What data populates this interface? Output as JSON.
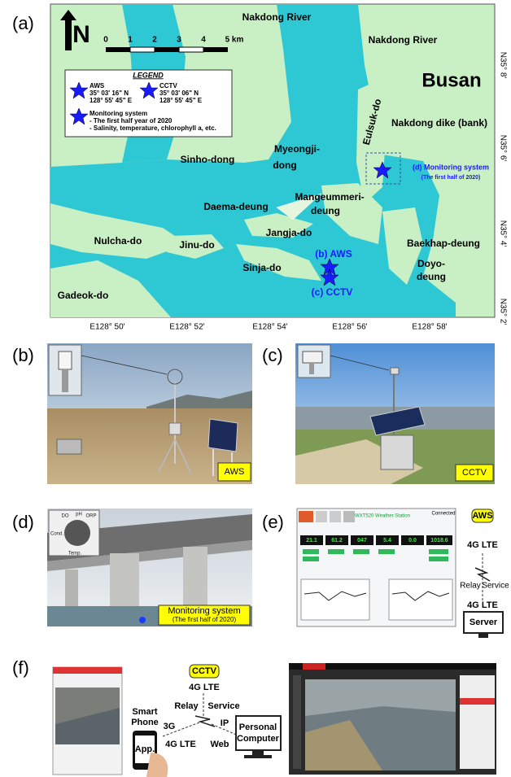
{
  "a": {
    "label": "(a)",
    "north": "N",
    "scale": [
      "0",
      "1",
      "2",
      "3",
      "4",
      "5 km"
    ],
    "legend": {
      "title": "LEGEND",
      "aws": {
        "name": "AWS",
        "lat": "35° 03' 16\" N",
        "lon": "128° 55' 45\" E"
      },
      "cctv": {
        "name": "CCTV",
        "lat": "35° 03' 06\" N",
        "lon": "128° 55' 45\" E"
      },
      "monitoring": {
        "name": "Monitoring system",
        "lines": [
          "- The first half year of 2020",
          "- Salinity, temperature, chlorophyll a, etc."
        ]
      }
    },
    "places": [
      "Nakdong River",
      "Nakdong River",
      "Busan",
      "Eulsuk-do",
      "Nakdong dike (bank)",
      "Sinho-dong",
      "Myeongji-",
      "dong",
      "Daema-deung",
      "Mangeummeri-",
      "deung",
      "Jangja-do",
      "Nulcha-do",
      "Jinu-do",
      "Sinja-do",
      "Baekhap-deung",
      "Doyo-",
      "deung",
      "Gadeok-do"
    ],
    "sites": {
      "aws": "(b) AWS",
      "cctv": "(c) CCTV",
      "monitoring": "(d) Monitoring system",
      "monitoring_note": "(The first half of 2020)"
    },
    "lat_ticks": [
      "N35° 8'",
      "N35° 6'",
      "N35° 4'",
      "N35° 2'"
    ],
    "lon_ticks": [
      "E128° 50'",
      "E128° 52'",
      "E128° 54'",
      "E128° 56'",
      "E128° 58'"
    ]
  },
  "b": {
    "label": "(b)",
    "tag": "AWS"
  },
  "c": {
    "label": "(c)",
    "tag": "CCTV"
  },
  "d": {
    "label": "(d)",
    "sensors": [
      "DO",
      "pH",
      "ORP",
      "Cond.",
      "Temp."
    ],
    "tag": "Monitoring system",
    "note": "(The first half of 2020)"
  },
  "e": {
    "label": "(e)",
    "window_title": "WXT520 Weather Station",
    "status": "Connected",
    "readings": [
      "21.1",
      "61.2",
      "047",
      "5.4",
      "0.0",
      "1018.6"
    ],
    "diagram": {
      "source": "AWS",
      "link_top": "4G LTE",
      "relay": "Relay",
      "service": "Service",
      "link_bottom": "4G LTE",
      "server": "Server"
    }
  },
  "f": {
    "label": "(f)",
    "diagram": {
      "source": "CCTV",
      "link_top": "4G LTE",
      "relay": "Relay",
      "service": "Service",
      "ip": "IP",
      "phone": [
        "Smart",
        "Phone"
      ],
      "g3": "3G",
      "lte": "4G LTE",
      "web": "Web",
      "app": "App.",
      "computer": [
        "Personal",
        "Computer"
      ]
    }
  }
}
